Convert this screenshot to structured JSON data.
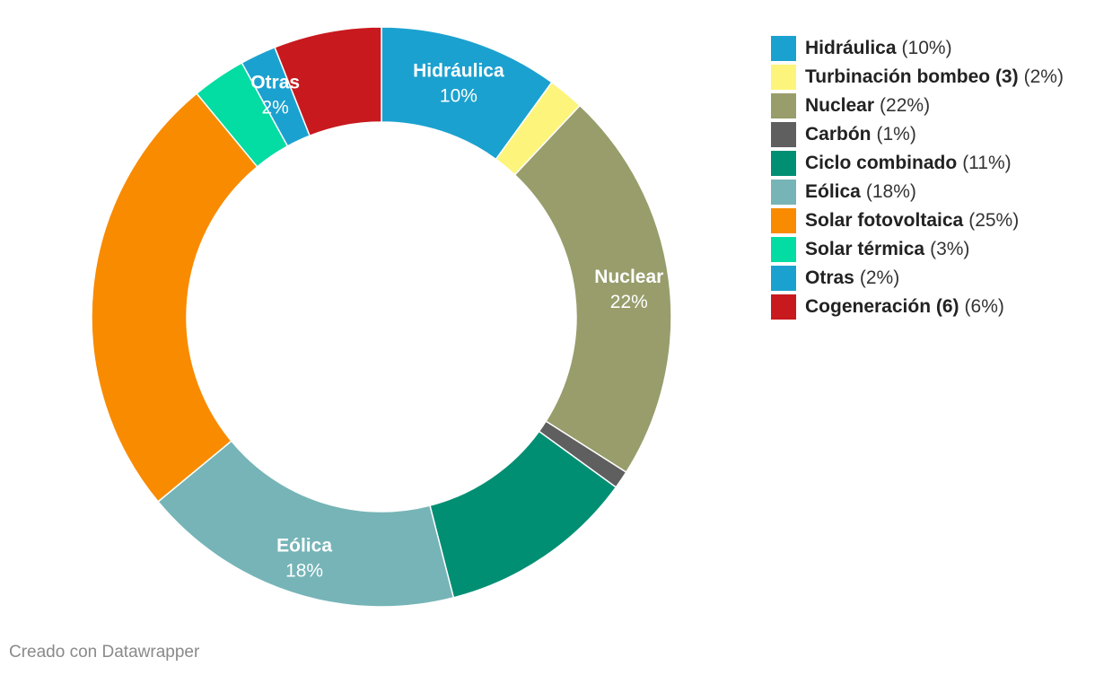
{
  "chart_data": {
    "type": "pie",
    "donut": true,
    "title": "",
    "legend": "right",
    "slices": [
      {
        "name": "Hidráulica",
        "percent_label": "(10%)",
        "chart_pct": "10%",
        "value": 10,
        "color": "#1ba1cf",
        "show_label": true
      },
      {
        "name": "Turbinación bombeo (3)",
        "percent_label": "(2%)",
        "value": 2,
        "color": "#fdf47c",
        "show_label": false
      },
      {
        "name": "Nuclear",
        "percent_label": "(22%)",
        "chart_pct": "22%",
        "value": 22,
        "color": "#989d6b",
        "show_label": true
      },
      {
        "name": "Carbón",
        "percent_label": "(1%)",
        "value": 1,
        "color": "#5f5f5f",
        "show_label": false
      },
      {
        "name": "Ciclo combinado ",
        "percent_label": "(11%)",
        "value": 11,
        "color": "#008f73",
        "show_label": false
      },
      {
        "name": "Eólica",
        "percent_label": "(18%)",
        "chart_pct": "18%",
        "value": 18,
        "color": "#76b4b7",
        "show_label": true
      },
      {
        "name": "Solar fotovoltaica",
        "percent_label": "(25%)",
        "value": 25,
        "color": "#f98b00",
        "show_label": false
      },
      {
        "name": "Solar térmica",
        "percent_label": "(3%)",
        "value": 3,
        "color": "#03dca2",
        "show_label": false
      },
      {
        "name": "Otras",
        "percent_label": "(2%)",
        "chart_pct": "2%",
        "value": 2,
        "color": "#1ba1cf",
        "show_label": true
      },
      {
        "name": "Cogeneración (6)",
        "percent_label": "(6%)",
        "value": 6,
        "color": "#c8191e",
        "show_label": false
      }
    ]
  },
  "footer": {
    "credit": "Creado con Datawrapper"
  }
}
